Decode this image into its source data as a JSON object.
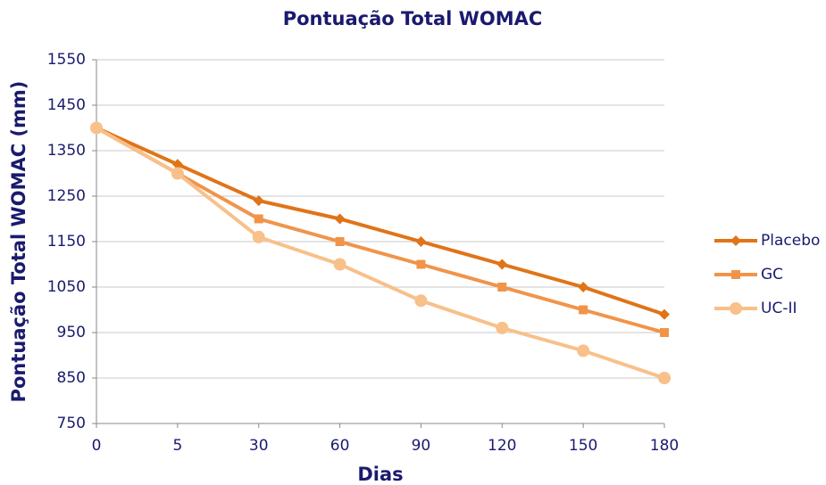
{
  "chart_data": {
    "type": "line",
    "title": "Pontuação Total WOMAC",
    "x_label": "Dias",
    "y_label": "Pontuação Total WOMAC (mm)",
    "categories": [
      "0",
      "5",
      "30",
      "60",
      "90",
      "120",
      "150",
      "180"
    ],
    "series": [
      {
        "name": "Placebo",
        "color": "#e07418",
        "marker": "diamond",
        "values": [
          1400,
          1320,
          1240,
          1200,
          1150,
          1100,
          1050,
          990
        ]
      },
      {
        "name": "GC",
        "color": "#f0944a",
        "marker": "square",
        "values": [
          1400,
          1300,
          1200,
          1150,
          1100,
          1050,
          1000,
          950
        ]
      },
      {
        "name": "UC-II",
        "color": "#f8c08a",
        "marker": "circle",
        "values": [
          1400,
          1300,
          1160,
          1100,
          1020,
          960,
          910,
          850
        ]
      }
    ],
    "ylim": [
      750,
      1550
    ],
    "yticks": [
      750,
      850,
      950,
      1050,
      1150,
      1250,
      1350,
      1450,
      1550
    ],
    "grid": true,
    "legend": "right"
  }
}
